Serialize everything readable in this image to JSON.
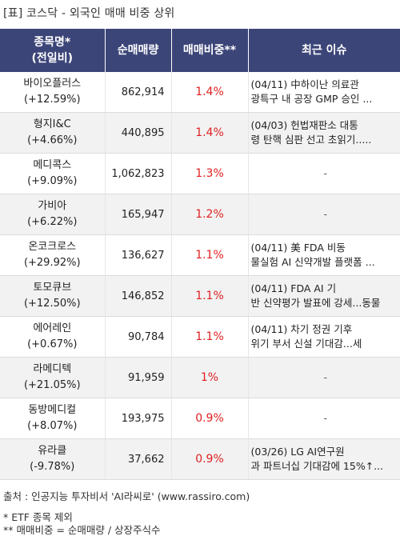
{
  "caption": "[표] 코스닥 - 외국인 매매 비중 상위",
  "headers": {
    "name_l1": "종목명*",
    "name_l2": "(전일비)",
    "volume": "순매매량",
    "ratio": "매매비중**",
    "issue": "최근 이슈"
  },
  "rows": [
    {
      "name": "바이오플러스",
      "change": "(+12.59%)",
      "volume": "862,914",
      "ratio": "1.4%",
      "issue_l1": "(04/11) 中하이난 의료관",
      "issue_l2": "광특구 내 공장 GMP 승인 ..."
    },
    {
      "name": "형지I&C",
      "change": "(+4.66%)",
      "volume": "440,895",
      "ratio": "1.4%",
      "issue_l1": "(04/03) 헌법재판소 대통",
      "issue_l2": "령 탄핵 심판 선고 초읽기....."
    },
    {
      "name": "메디콕스",
      "change": "(+9.09%)",
      "volume": "1,062,823",
      "ratio": "1.3%",
      "issue_l1": "-",
      "issue_l2": ""
    },
    {
      "name": "가비아",
      "change": "(+6.22%)",
      "volume": "165,947",
      "ratio": "1.2%",
      "issue_l1": "-",
      "issue_l2": ""
    },
    {
      "name": "온코크로스",
      "change": "(+29.92%)",
      "volume": "136,627",
      "ratio": "1.1%",
      "issue_l1": "(04/11) 美 FDA 비동",
      "issue_l2": "물실험 AI 신약개발 플랫폼 ..."
    },
    {
      "name": "토모큐브",
      "change": "(+12.50%)",
      "volume": "146,852",
      "ratio": "1.1%",
      "issue_l1": "(04/11) FDA AI 기",
      "issue_l2": "반 신약평가 발표에 강세...동물"
    },
    {
      "name": "에어레인",
      "change": "(+0.67%)",
      "volume": "90,784",
      "ratio": "1.1%",
      "issue_l1": "(04/11) 차기 정권 기후",
      "issue_l2": "위기 부서 신설 기대감...세"
    },
    {
      "name": "라메디텍",
      "change": "(+21.05%)",
      "volume": "91,959",
      "ratio": "1%",
      "issue_l1": "-",
      "issue_l2": ""
    },
    {
      "name": "동방메디컬",
      "change": "(+8.07%)",
      "volume": "193,975",
      "ratio": "0.9%",
      "issue_l1": "-",
      "issue_l2": ""
    },
    {
      "name": "유라클",
      "change": "(-9.78%)",
      "volume": "37,662",
      "ratio": "0.9%",
      "issue_l1": "(03/26) LG AI연구원",
      "issue_l2": "과 파트너십 기대감에 15%↑..."
    }
  ],
  "footer": {
    "source": "출처 : 인공지능 투자비서 'AI라씨로' (www.rassiro.com)",
    "note1": "* ETF 종목 제외",
    "note2": "** 매매비중 = 순매매량 / 상장주식수"
  }
}
